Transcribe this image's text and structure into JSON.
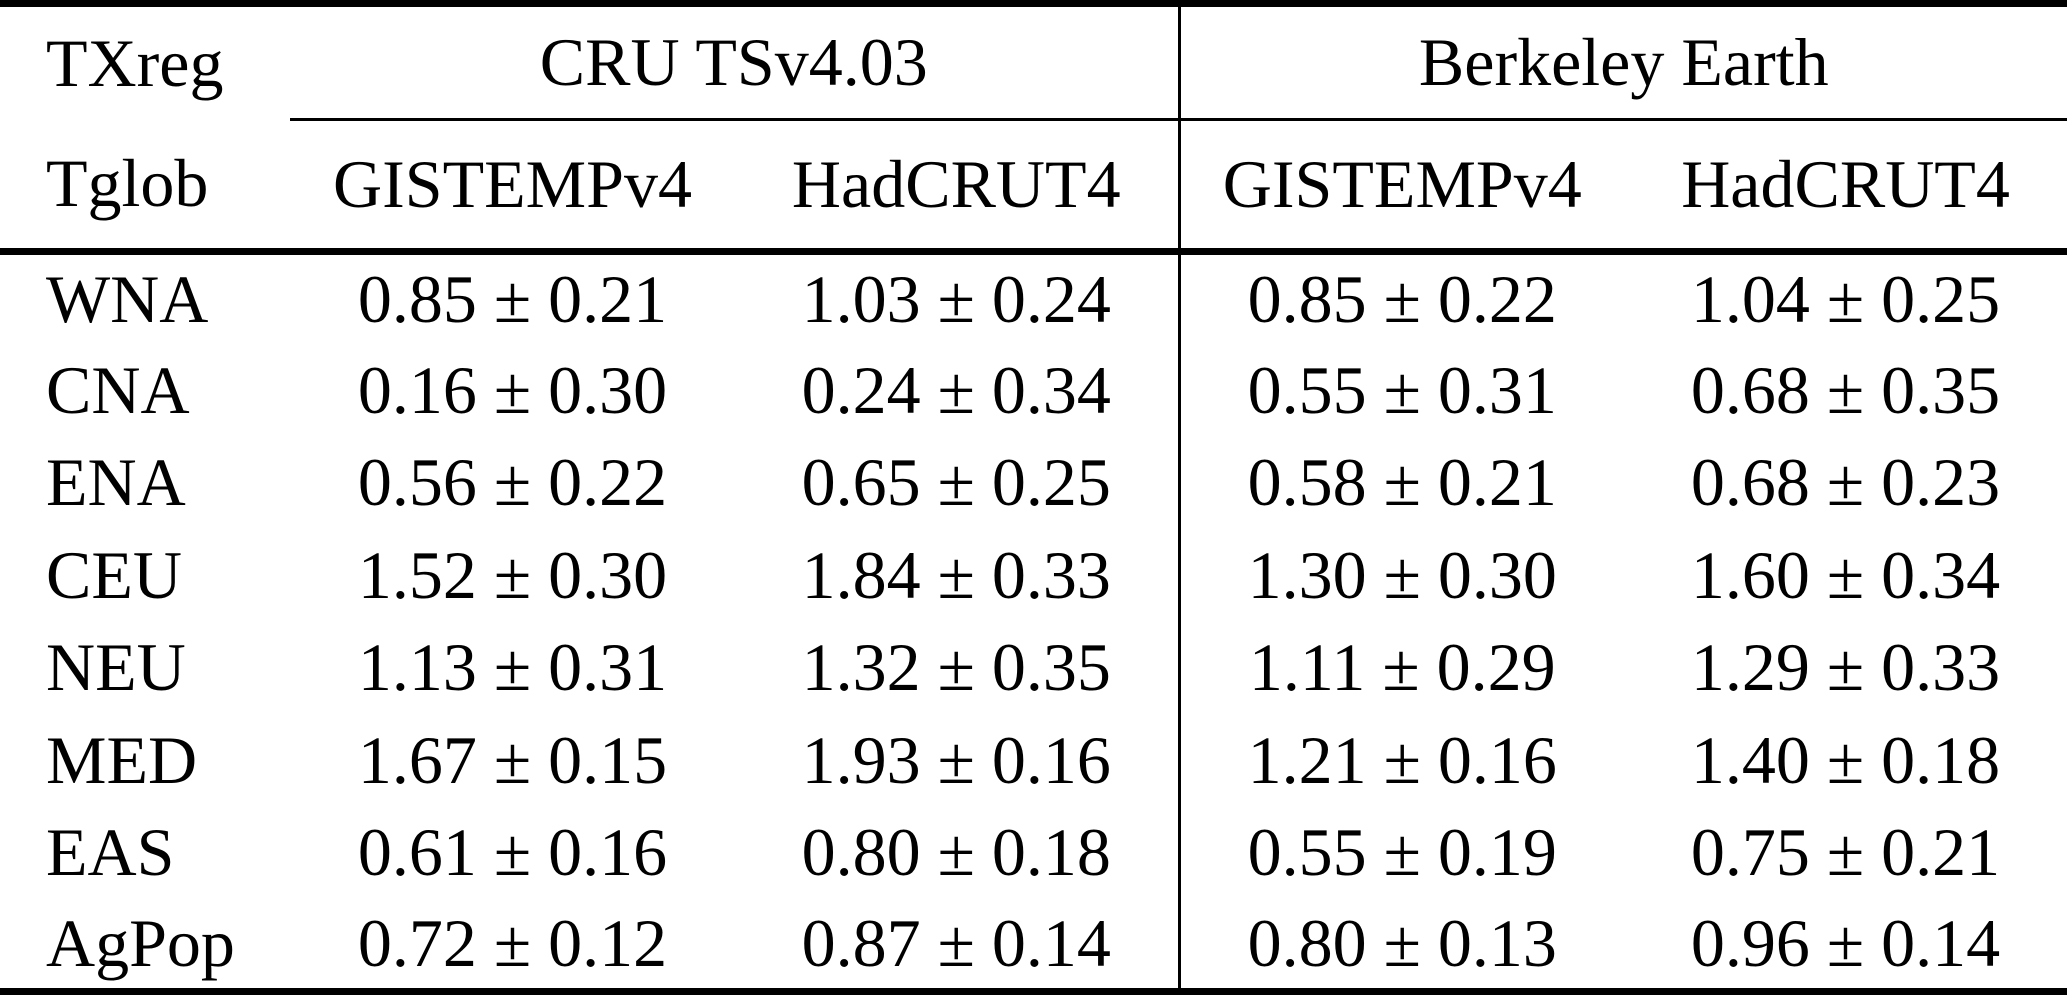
{
  "table": {
    "header": {
      "row1": {
        "corner": "TXreg",
        "group1": "CRU TSv4.03",
        "group2": "Berkeley Earth"
      },
      "row2": {
        "corner": "Tglob",
        "cols": [
          "GISTEMPv4",
          "HadCRUT4",
          "GISTEMPv4",
          "HadCRUT4"
        ]
      }
    },
    "rows": [
      {
        "region": "WNA",
        "values": [
          "0.85 ± 0.21",
          "1.03 ± 0.24",
          "0.85 ± 0.22",
          "1.04 ± 0.25"
        ]
      },
      {
        "region": "CNA",
        "values": [
          "0.16 ± 0.30",
          "0.24 ± 0.34",
          "0.55 ± 0.31",
          "0.68 ± 0.35"
        ]
      },
      {
        "region": "ENA",
        "values": [
          "0.56 ± 0.22",
          "0.65 ± 0.25",
          "0.58 ± 0.21",
          "0.68 ± 0.23"
        ]
      },
      {
        "region": "CEU",
        "values": [
          "1.52 ± 0.30",
          "1.84 ± 0.33",
          "1.30 ± 0.30",
          "1.60 ± 0.34"
        ]
      },
      {
        "region": "NEU",
        "values": [
          "1.13 ± 0.31",
          "1.32 ± 0.35",
          "1.11 ± 0.29",
          "1.29 ± 0.33"
        ]
      },
      {
        "region": "MED",
        "values": [
          "1.67 ± 0.15",
          "1.93 ± 0.16",
          "1.21 ± 0.16",
          "1.40 ± 0.18"
        ]
      },
      {
        "region": "EAS",
        "values": [
          "0.61 ± 0.16",
          "0.80 ± 0.18",
          "0.55 ± 0.19",
          "0.75 ± 0.21"
        ]
      },
      {
        "region": "AgPop",
        "values": [
          "0.72 ± 0.12",
          "0.87 ± 0.14",
          "0.80 ± 0.13",
          "0.96 ± 0.14"
        ]
      }
    ],
    "colors": {
      "text": "#000000",
      "background": "#ffffff",
      "rule": "#000000"
    }
  },
  "chart_data": {
    "type": "table",
    "corner_labels": [
      "TXreg",
      "Tglob"
    ],
    "column_groups": [
      {
        "label": "CRU TSv4.03",
        "columns": [
          "GISTEMPv4",
          "HadCRUT4"
        ]
      },
      {
        "label": "Berkeley Earth",
        "columns": [
          "GISTEMPv4",
          "HadCRUT4"
        ]
      }
    ],
    "rows": [
      {
        "region": "WNA",
        "cru_gistempv4": 0.85,
        "cru_gistempv4_unc": 0.21,
        "cru_hadcrut4": 1.03,
        "cru_hadcrut4_unc": 0.24,
        "be_gistempv4": 0.85,
        "be_gistempv4_unc": 0.22,
        "be_hadcrut4": 1.04,
        "be_hadcrut4_unc": 0.25
      },
      {
        "region": "CNA",
        "cru_gistempv4": 0.16,
        "cru_gistempv4_unc": 0.3,
        "cru_hadcrut4": 0.24,
        "cru_hadcrut4_unc": 0.34,
        "be_gistempv4": 0.55,
        "be_gistempv4_unc": 0.31,
        "be_hadcrut4": 0.68,
        "be_hadcrut4_unc": 0.35
      },
      {
        "region": "ENA",
        "cru_gistempv4": 0.56,
        "cru_gistempv4_unc": 0.22,
        "cru_hadcrut4": 0.65,
        "cru_hadcrut4_unc": 0.25,
        "be_gistempv4": 0.58,
        "be_gistempv4_unc": 0.21,
        "be_hadcrut4": 0.68,
        "be_hadcrut4_unc": 0.23
      },
      {
        "region": "CEU",
        "cru_gistempv4": 1.52,
        "cru_gistempv4_unc": 0.3,
        "cru_hadcrut4": 1.84,
        "cru_hadcrut4_unc": 0.33,
        "be_gistempv4": 1.3,
        "be_gistempv4_unc": 0.3,
        "be_hadcrut4": 1.6,
        "be_hadcrut4_unc": 0.34
      },
      {
        "region": "NEU",
        "cru_gistempv4": 1.13,
        "cru_gistempv4_unc": 0.31,
        "cru_hadcrut4": 1.32,
        "cru_hadcrut4_unc": 0.35,
        "be_gistempv4": 1.11,
        "be_gistempv4_unc": 0.29,
        "be_hadcrut4": 1.29,
        "be_hadcrut4_unc": 0.33
      },
      {
        "region": "MED",
        "cru_gistempv4": 1.67,
        "cru_gistempv4_unc": 0.15,
        "cru_hadcrut4": 1.93,
        "cru_hadcrut4_unc": 0.16,
        "be_gistempv4": 1.21,
        "be_gistempv4_unc": 0.16,
        "be_hadcrut4": 1.4,
        "be_hadcrut4_unc": 0.18
      },
      {
        "region": "EAS",
        "cru_gistempv4": 0.61,
        "cru_gistempv4_unc": 0.16,
        "cru_hadcrut4": 0.8,
        "cru_hadcrut4_unc": 0.18,
        "be_gistempv4": 0.55,
        "be_gistempv4_unc": 0.19,
        "be_hadcrut4": 0.75,
        "be_hadcrut4_unc": 0.21
      },
      {
        "region": "AgPop",
        "cru_gistempv4": 0.72,
        "cru_gistempv4_unc": 0.12,
        "cru_hadcrut4": 0.87,
        "cru_hadcrut4_unc": 0.14,
        "be_gistempv4": 0.8,
        "be_gistempv4_unc": 0.13,
        "be_hadcrut4": 0.96,
        "be_hadcrut4_unc": 0.14
      }
    ]
  }
}
